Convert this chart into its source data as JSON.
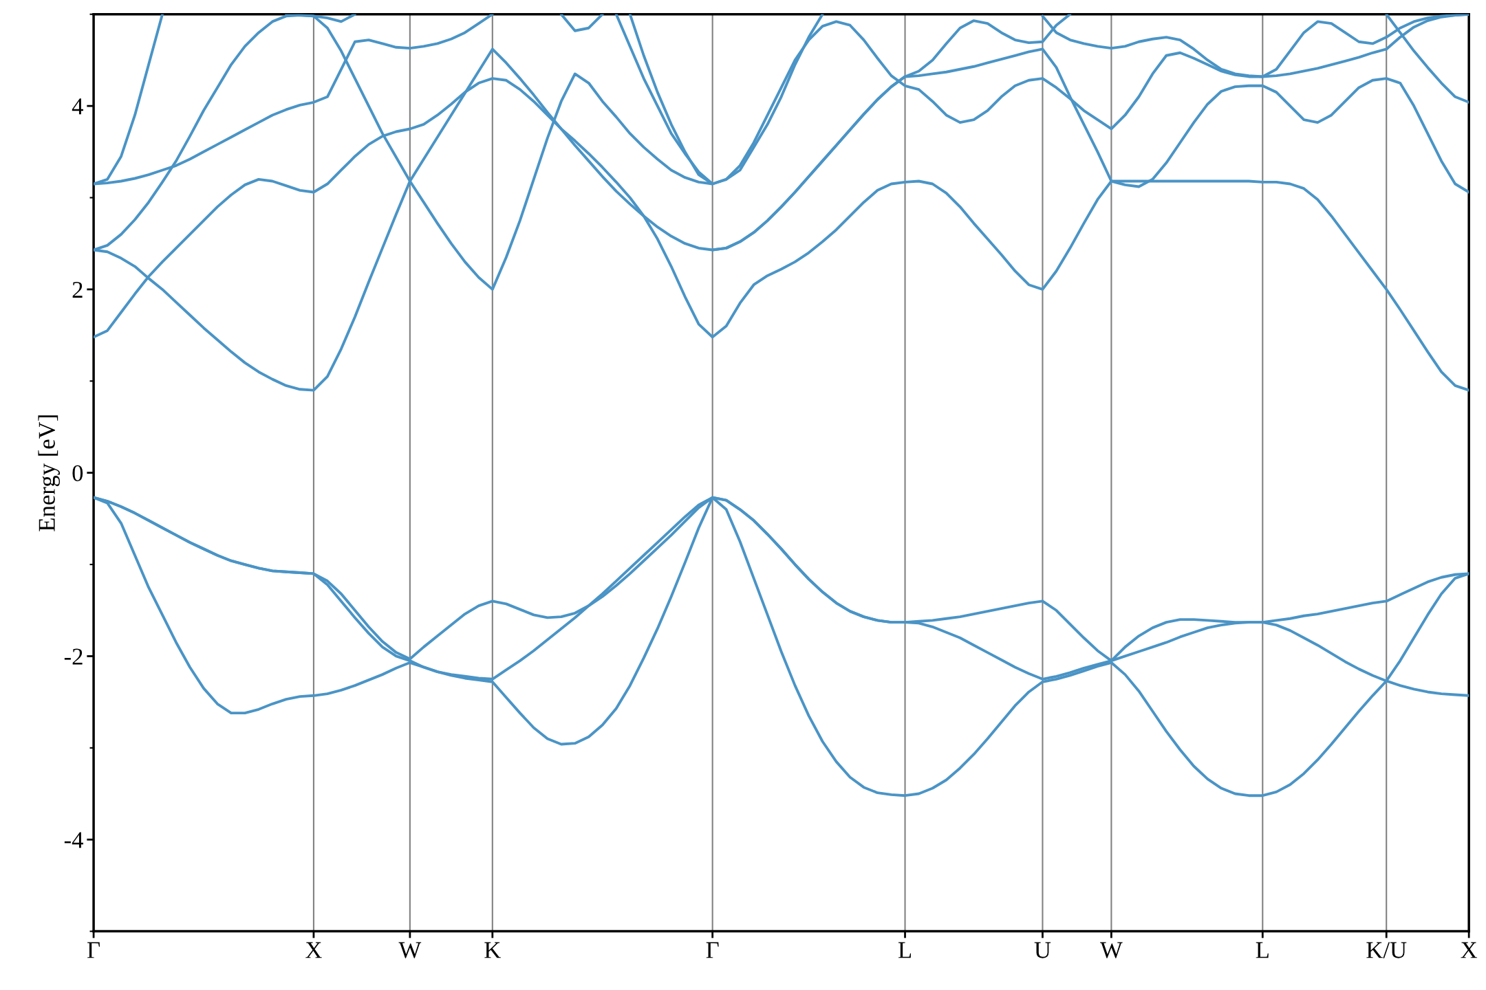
{
  "chart_data": {
    "type": "line",
    "ylabel": "Energy [eV]",
    "ylim": [
      -5,
      5
    ],
    "categories": [
      "Γ",
      null,
      null,
      null,
      null,
      null,
      null,
      null,
      null,
      null,
      null,
      null,
      null,
      null,
      null,
      null,
      "X",
      null,
      null,
      null,
      null,
      null,
      null,
      "W",
      null,
      null,
      null,
      null,
      null,
      "K",
      null,
      null,
      null,
      null,
      null,
      null,
      null,
      null,
      null,
      null,
      null,
      null,
      null,
      null,
      null,
      "Γ",
      null,
      null,
      null,
      null,
      null,
      null,
      null,
      null,
      null,
      null,
      null,
      null,
      null,
      "L",
      null,
      null,
      null,
      null,
      null,
      null,
      null,
      null,
      null,
      "U",
      null,
      null,
      null,
      null,
      "W",
      null,
      null,
      null,
      null,
      null,
      null,
      null,
      null,
      null,
      null,
      "L",
      null,
      null,
      null,
      null,
      null,
      null,
      null,
      null,
      "K/U",
      null,
      null,
      null,
      null,
      null,
      "X"
    ],
    "yticks": [
      {
        "value": -5,
        "label": null
      },
      -4,
      {
        "value": -3,
        "label": null
      },
      -2,
      {
        "value": -1,
        "label": null
      },
      0,
      {
        "value": 1,
        "label": null
      },
      2,
      {
        "value": 3,
        "label": null
      },
      4,
      {
        "value": 5,
        "label": null
      }
    ],
    "grid": "x",
    "series": [
      {
        "color": "#4a94c6",
        "values": [
          -0.27,
          -0.33,
          -0.55,
          -0.9,
          -1.25,
          -1.55,
          -1.85,
          -2.12,
          -2.35,
          -2.52,
          -2.62,
          -2.62,
          -2.58,
          -2.52,
          -2.47,
          -2.44,
          -2.43,
          -2.41,
          -2.37,
          -2.32,
          -2.26,
          -2.2,
          -2.13,
          -2.07,
          -2.12,
          -2.17,
          -2.21,
          -2.24,
          -2.26,
          -2.28,
          -2.45,
          -2.62,
          -2.78,
          -2.9,
          -2.96,
          -2.95,
          -2.88,
          -2.75,
          -2.57,
          -2.32,
          -2.02,
          -1.7,
          -1.35,
          -0.98,
          -0.6,
          -0.27,
          -0.4,
          -0.75,
          -1.15,
          -1.55,
          -1.95,
          -2.32,
          -2.65,
          -2.93,
          -3.15,
          -3.32,
          -3.43,
          -3.49,
          -3.51,
          -3.52,
          -3.5,
          -3.44,
          -3.35,
          -3.22,
          -3.07,
          -2.9,
          -2.72,
          -2.54,
          -2.39,
          -2.28,
          -2.25,
          -2.21,
          -2.16,
          -2.11,
          -2.07,
          -2.2,
          -2.38,
          -2.6,
          -2.82,
          -3.02,
          -3.2,
          -3.34,
          -3.44,
          -3.5,
          -3.52,
          -3.52,
          -3.48,
          -3.4,
          -3.28,
          -3.13,
          -2.96,
          -2.78,
          -2.6,
          -2.43,
          -2.27,
          -2.32,
          -2.36,
          -2.39,
          -2.41,
          -2.42,
          -2.43
        ]
      },
      {
        "color": "#4a94c6",
        "values": [
          -0.27,
          -0.31,
          -0.37,
          -0.44,
          -0.52,
          -0.6,
          -0.68,
          -0.76,
          -0.83,
          -0.9,
          -0.96,
          -1.0,
          -1.04,
          -1.07,
          -1.08,
          -1.09,
          -1.1,
          -1.22,
          -1.4,
          -1.58,
          -1.75,
          -1.9,
          -2.0,
          -2.05,
          -2.12,
          -2.17,
          -2.2,
          -2.22,
          -2.24,
          -2.25,
          -2.15,
          -2.05,
          -1.94,
          -1.82,
          -1.7,
          -1.58,
          -1.45,
          -1.32,
          -1.18,
          -1.04,
          -0.9,
          -0.76,
          -0.62,
          -0.48,
          -0.35,
          -0.27,
          -0.3,
          -0.4,
          -0.52,
          -0.67,
          -0.83,
          -1.0,
          -1.16,
          -1.3,
          -1.42,
          -1.51,
          -1.57,
          -1.61,
          -1.63,
          -1.63,
          -1.64,
          -1.68,
          -1.74,
          -1.8,
          -1.88,
          -1.96,
          -2.04,
          -2.12,
          -2.19,
          -2.25,
          -2.22,
          -2.18,
          -2.13,
          -2.09,
          -2.05,
          -2.0,
          -1.95,
          -1.9,
          -1.85,
          -1.79,
          -1.74,
          -1.69,
          -1.66,
          -1.64,
          -1.63,
          -1.63,
          -1.66,
          -1.72,
          -1.8,
          -1.88,
          -1.97,
          -2.06,
          -2.14,
          -2.21,
          -2.27,
          -2.05,
          -1.8,
          -1.55,
          -1.32,
          -1.15,
          -1.1
        ]
      },
      {
        "color": "#4a94c6",
        "values": [
          -0.27,
          -0.31,
          -0.37,
          -0.44,
          -0.52,
          -0.6,
          -0.68,
          -0.76,
          -0.83,
          -0.9,
          -0.96,
          -1.0,
          -1.04,
          -1.07,
          -1.08,
          -1.09,
          -1.1,
          -1.18,
          -1.32,
          -1.5,
          -1.68,
          -1.84,
          -1.96,
          -2.03,
          -1.9,
          -1.78,
          -1.66,
          -1.54,
          -1.45,
          -1.4,
          -1.43,
          -1.49,
          -1.55,
          -1.58,
          -1.57,
          -1.53,
          -1.45,
          -1.35,
          -1.23,
          -1.1,
          -0.96,
          -0.82,
          -0.68,
          -0.53,
          -0.38,
          -0.27,
          -0.3,
          -0.4,
          -0.52,
          -0.67,
          -0.83,
          -1.0,
          -1.16,
          -1.3,
          -1.42,
          -1.51,
          -1.57,
          -1.61,
          -1.63,
          -1.63,
          -1.62,
          -1.61,
          -1.59,
          -1.57,
          -1.54,
          -1.51,
          -1.48,
          -1.45,
          -1.42,
          -1.4,
          -1.5,
          -1.65,
          -1.8,
          -1.94,
          -2.05,
          -1.9,
          -1.78,
          -1.69,
          -1.63,
          -1.6,
          -1.6,
          -1.61,
          -1.62,
          -1.63,
          -1.63,
          -1.63,
          -1.61,
          -1.59,
          -1.56,
          -1.54,
          -1.51,
          -1.48,
          -1.45,
          -1.42,
          -1.4,
          -1.33,
          -1.26,
          -1.19,
          -1.14,
          -1.11,
          -1.1
        ]
      },
      {
        "color": "#4a94c6",
        "values": [
          2.43,
          2.41,
          2.34,
          2.25,
          2.12,
          2.0,
          1.86,
          1.72,
          1.58,
          1.45,
          1.32,
          1.2,
          1.1,
          1.02,
          0.95,
          0.91,
          0.9,
          1.05,
          1.35,
          1.7,
          2.08,
          2.45,
          2.82,
          3.18,
          3.42,
          3.66,
          3.9,
          4.14,
          4.38,
          4.62,
          4.47,
          4.3,
          4.12,
          3.93,
          3.75,
          3.57,
          3.4,
          3.23,
          3.07,
          2.93,
          2.8,
          2.68,
          2.58,
          2.5,
          2.45,
          2.43,
          2.45,
          2.52,
          2.62,
          2.75,
          2.9,
          3.06,
          3.23,
          3.4,
          3.57,
          3.74,
          3.91,
          4.07,
          4.21,
          4.32,
          4.33,
          4.35,
          4.37,
          4.4,
          4.43,
          4.47,
          4.51,
          4.55,
          4.59,
          4.62,
          4.42,
          4.1,
          3.8,
          3.5,
          3.18,
          3.18,
          3.18,
          3.18,
          3.18,
          3.18,
          3.18,
          3.18,
          3.18,
          3.18,
          3.18,
          3.17,
          3.17,
          3.15,
          3.1,
          2.98,
          2.8,
          2.6,
          2.4,
          2.2,
          2.0,
          1.78,
          1.55,
          1.32,
          1.1,
          0.95,
          0.9
        ]
      },
      {
        "color": "#4a94c6",
        "values": [
          1.48,
          1.55,
          1.75,
          1.95,
          2.14,
          2.3,
          2.45,
          2.6,
          2.75,
          2.9,
          3.03,
          3.14,
          3.2,
          3.18,
          3.13,
          3.08,
          3.06,
          3.15,
          3.3,
          3.45,
          3.58,
          3.67,
          3.72,
          3.75,
          3.8,
          3.9,
          4.02,
          4.15,
          4.25,
          4.3,
          4.28,
          4.18,
          4.05,
          3.9,
          3.75,
          3.62,
          3.48,
          3.33,
          3.17,
          3.0,
          2.8,
          2.55,
          2.25,
          1.92,
          1.62,
          1.48,
          1.6,
          1.85,
          2.05,
          2.15,
          2.22,
          2.3,
          2.4,
          2.52,
          2.65,
          2.8,
          2.95,
          3.08,
          3.15,
          3.17,
          3.18,
          3.15,
          3.05,
          2.9,
          2.72,
          2.55,
          2.38,
          2.2,
          2.05,
          2.0,
          2.2,
          2.45,
          2.72,
          2.98,
          3.18,
          3.14,
          3.12,
          3.2,
          3.38,
          3.6,
          3.82,
          4.02,
          4.16,
          4.21,
          4.22,
          4.22,
          4.15,
          4.0,
          3.85,
          3.82,
          3.9,
          4.05,
          4.2,
          4.28,
          4.3,
          4.25,
          4.0,
          3.7,
          3.4,
          3.15,
          3.06
        ]
      },
      {
        "color": "#4a94c6",
        "values": [
          2.43,
          2.48,
          2.6,
          2.76,
          2.95,
          3.17,
          3.4,
          3.67,
          3.95,
          4.2,
          4.45,
          4.65,
          4.8,
          4.92,
          4.98,
          4.99,
          4.98,
          4.85,
          4.6,
          4.3,
          4.0,
          3.7,
          3.44,
          3.18,
          2.95,
          2.72,
          2.5,
          2.3,
          2.13,
          2.0,
          2.35,
          2.75,
          3.2,
          3.65,
          4.05,
          4.35,
          4.25,
          4.05,
          3.88,
          3.7,
          3.55,
          3.42,
          3.3,
          3.22,
          3.17,
          3.15,
          3.2,
          3.35,
          3.6,
          3.9,
          4.2,
          4.5,
          4.72,
          4.87,
          4.92,
          4.88,
          4.72,
          4.52,
          4.33,
          4.22,
          4.18,
          4.05,
          3.9,
          3.82,
          3.85,
          3.95,
          4.1,
          4.22,
          4.28,
          4.3,
          4.2,
          4.08,
          3.95,
          3.85,
          3.75,
          3.9,
          4.1,
          4.35,
          4.55,
          4.58,
          4.52,
          4.45,
          4.38,
          4.34,
          4.32,
          4.32,
          4.33,
          4.35,
          4.38,
          4.41,
          4.45,
          4.49,
          4.53,
          4.58,
          4.62,
          4.75,
          4.86,
          4.93,
          4.97,
          4.99,
          5.0
        ]
      },
      {
        "color": "#4a94c6",
        "values": [
          null,
          null,
          null,
          null,
          null,
          null,
          null,
          null,
          null,
          null,
          null,
          null,
          null,
          null,
          null,
          null,
          null,
          null,
          null,
          null,
          null,
          null,
          null,
          null,
          null,
          null,
          null,
          null,
          null,
          null,
          null,
          null,
          null,
          null,
          null,
          null,
          null,
          null,
          null,
          null,
          null,
          null,
          null,
          null,
          null,
          2.43,
          2.45,
          2.52,
          2.62,
          2.75,
          2.9,
          3.06,
          3.23,
          3.4,
          3.57,
          3.74,
          3.91,
          4.07,
          4.21,
          4.32,
          4.38,
          4.5,
          4.68,
          4.85,
          4.93,
          4.9,
          4.8,
          4.72,
          4.69,
          4.7,
          4.88,
          5.0,
          null,
          null,
          null,
          null,
          null,
          null,
          null,
          null,
          null,
          null,
          null,
          null,
          null,
          null,
          null,
          null,
          null,
          null,
          null,
          null,
          null,
          null,
          null,
          null,
          null,
          null,
          null,
          null,
          null
        ]
      },
      {
        "color": "#4a94c6",
        "values": [
          3.15,
          3.16,
          3.18,
          3.21,
          3.25,
          3.3,
          3.35,
          3.42,
          3.5,
          3.58,
          3.66,
          3.74,
          3.82,
          3.9,
          3.96,
          4.01,
          4.04,
          4.1,
          4.4,
          4.7,
          4.72,
          4.68,
          4.64,
          4.63,
          4.65,
          4.68,
          4.73,
          4.8,
          4.9,
          5.0,
          null,
          null,
          null,
          null,
          null,
          null,
          null,
          null,
          null,
          null,
          null,
          null,
          null,
          null,
          null,
          null,
          null,
          null,
          null,
          null,
          null,
          null,
          null,
          null,
          null,
          null,
          null,
          null,
          null,
          null,
          null,
          null,
          null,
          null,
          null,
          null,
          null,
          null,
          null,
          null,
          null,
          null,
          null,
          null,
          null,
          null,
          null,
          null,
          null,
          null,
          null,
          null,
          null,
          null,
          null,
          null,
          null,
          null,
          null,
          null,
          null,
          null,
          null,
          null,
          null,
          null,
          null,
          null,
          null,
          null,
          null
        ]
      },
      {
        "color": "#4a94c6",
        "values": [
          3.15,
          3.2,
          3.45,
          3.9,
          4.45,
          5.0,
          null,
          null,
          null,
          null,
          null,
          null,
          null,
          null,
          null,
          null,
          null,
          null,
          null,
          null,
          null,
          null,
          null,
          null,
          null,
          null,
          null,
          null,
          null,
          null,
          null,
          null,
          null,
          null,
          null,
          null,
          null,
          null,
          null,
          null,
          null,
          null,
          null,
          null,
          null,
          null,
          null,
          null,
          null,
          null,
          null,
          null,
          null,
          null,
          null,
          null,
          null,
          null,
          null,
          null,
          null,
          null,
          null,
          null,
          null,
          null,
          null,
          null,
          null,
          null,
          null,
          null,
          null,
          null,
          null,
          null,
          null,
          null,
          null,
          null,
          null,
          null,
          null,
          null,
          null,
          null,
          null,
          null,
          null,
          null,
          null,
          null,
          null,
          null,
          null,
          null,
          null,
          null,
          null,
          null,
          null
        ]
      },
      {
        "color": "#4a94c6",
        "values": [
          null,
          null,
          null,
          null,
          null,
          null,
          null,
          null,
          null,
          null,
          null,
          null,
          null,
          null,
          null,
          null,
          null,
          null,
          null,
          null,
          null,
          null,
          null,
          null,
          null,
          null,
          null,
          null,
          null,
          null,
          null,
          null,
          null,
          null,
          null,
          null,
          null,
          null,
          5.0,
          4.65,
          4.3,
          4.0,
          3.7,
          3.48,
          3.28,
          3.15,
          3.2,
          3.3,
          3.55,
          3.8,
          4.1,
          4.45,
          4.75,
          5.0,
          null,
          null,
          null,
          null,
          null,
          null,
          null,
          null,
          null,
          null,
          null,
          null,
          null,
          null,
          null,
          null,
          null,
          null,
          null,
          null,
          null,
          null,
          null,
          null,
          null,
          null,
          null,
          null,
          null,
          null,
          null,
          null,
          null,
          null,
          null,
          null,
          null,
          null,
          null,
          null,
          null,
          null,
          null,
          null,
          null,
          null,
          null
        ]
      },
      {
        "color": "#4a94c6",
        "values": [
          null,
          null,
          null,
          null,
          null,
          null,
          null,
          null,
          null,
          null,
          null,
          null,
          null,
          null,
          null,
          null,
          null,
          null,
          null,
          null,
          null,
          null,
          null,
          null,
          null,
          null,
          null,
          null,
          null,
          null,
          null,
          null,
          null,
          null,
          null,
          null,
          null,
          null,
          null,
          5.0,
          4.55,
          4.15,
          3.8,
          3.5,
          3.25,
          3.15,
          null,
          null,
          null,
          null,
          null,
          null,
          null,
          null,
          null,
          null,
          null,
          null,
          null,
          null,
          null,
          null,
          null,
          null,
          null,
          null,
          null,
          null,
          null,
          null,
          null,
          null,
          null,
          null,
          null,
          null,
          null,
          null,
          null,
          null,
          null,
          null,
          null,
          null,
          null,
          null,
          null,
          null,
          null,
          null,
          null,
          null,
          null,
          null,
          null,
          null,
          null,
          null,
          null,
          null,
          null
        ]
      },
      {
        "color": "#4a94c6",
        "values": [
          null,
          null,
          null,
          null,
          null,
          null,
          null,
          null,
          null,
          null,
          null,
          null,
          null,
          null,
          null,
          null,
          null,
          null,
          null,
          null,
          null,
          null,
          null,
          null,
          null,
          null,
          null,
          null,
          null,
          null,
          null,
          null,
          null,
          null,
          5.0,
          4.82,
          4.85,
          5.0,
          null,
          null,
          null,
          null,
          null,
          null,
          null,
          null,
          null,
          null,
          null,
          null,
          null,
          null,
          null,
          null,
          null,
          null,
          null,
          null,
          null,
          null,
          null,
          null,
          null,
          null,
          null,
          null,
          null,
          null,
          null,
          null,
          null,
          null,
          null,
          null,
          null,
          null,
          null,
          null,
          null,
          null,
          null,
          null,
          null,
          null,
          null,
          null,
          null,
          null,
          null,
          null,
          null,
          null,
          null,
          null,
          null,
          null,
          null,
          null,
          null,
          null,
          null
        ]
      },
      {
        "color": "#4a94c6",
        "values": [
          null,
          null,
          null,
          null,
          null,
          null,
          null,
          null,
          null,
          null,
          null,
          null,
          null,
          null,
          5.0,
          4.99,
          4.98,
          4.96,
          4.92,
          5.0,
          null,
          null,
          null,
          null,
          null,
          null,
          null,
          null,
          null,
          null,
          null,
          null,
          null,
          null,
          null,
          null,
          null,
          null,
          null,
          null,
          null,
          null,
          null,
          null,
          null,
          null,
          null,
          null,
          null,
          null,
          null,
          null,
          null,
          null,
          null,
          null,
          null,
          null,
          null,
          null,
          null,
          null,
          null,
          null,
          null,
          null,
          null,
          null,
          null,
          null,
          null,
          null,
          null,
          null,
          null,
          null,
          null,
          null,
          null,
          null,
          null,
          null,
          null,
          null,
          null,
          null,
          null,
          null,
          null,
          null,
          null,
          null,
          null,
          null,
          null,
          null,
          null,
          null,
          null,
          null,
          null
        ]
      },
      {
        "color": "#4a94c6",
        "values": [
          null,
          null,
          null,
          null,
          null,
          null,
          null,
          null,
          null,
          null,
          null,
          null,
          null,
          null,
          null,
          null,
          null,
          null,
          null,
          null,
          null,
          null,
          null,
          null,
          null,
          null,
          null,
          null,
          null,
          null,
          null,
          null,
          null,
          null,
          null,
          null,
          null,
          null,
          null,
          null,
          null,
          null,
          null,
          null,
          null,
          null,
          null,
          null,
          null,
          null,
          null,
          null,
          null,
          null,
          null,
          null,
          null,
          null,
          null,
          null,
          null,
          null,
          null,
          null,
          null,
          null,
          null,
          null,
          null,
          4.98,
          4.8,
          4.72,
          4.68,
          4.65,
          4.63,
          4.65,
          4.7,
          4.73,
          4.75,
          4.72,
          4.62,
          4.5,
          4.4,
          4.35,
          4.33,
          4.32,
          4.4,
          4.6,
          4.8,
          4.92,
          4.9,
          4.8,
          4.7,
          4.68,
          4.75,
          4.85,
          4.92,
          4.96,
          4.98,
          4.99,
          5.0
        ]
      },
      {
        "color": "#4a94c6",
        "values": [
          null,
          null,
          null,
          null,
          null,
          null,
          null,
          null,
          null,
          null,
          null,
          null,
          null,
          null,
          null,
          null,
          null,
          null,
          null,
          null,
          null,
          null,
          null,
          null,
          null,
          null,
          null,
          null,
          null,
          null,
          null,
          null,
          null,
          null,
          null,
          null,
          null,
          null,
          null,
          null,
          null,
          null,
          null,
          null,
          null,
          null,
          null,
          null,
          null,
          null,
          null,
          null,
          null,
          null,
          null,
          null,
          null,
          null,
          null,
          null,
          null,
          null,
          null,
          null,
          null,
          null,
          null,
          null,
          null,
          null,
          null,
          null,
          null,
          null,
          null,
          null,
          null,
          null,
          null,
          null,
          null,
          null,
          null,
          null,
          null,
          null,
          null,
          null,
          null,
          null,
          null,
          null,
          null,
          null,
          5.0,
          4.8,
          4.6,
          4.42,
          4.25,
          4.1,
          4.04
        ]
      }
    ]
  }
}
